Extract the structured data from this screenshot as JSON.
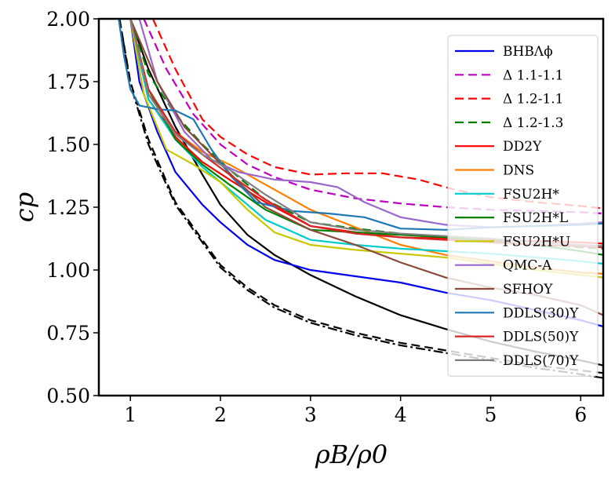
{
  "chart_data": {
    "type": "line",
    "title": "",
    "xlabel": "ρB/ρ0",
    "ylabel": "cp",
    "xlim": [
      0.65,
      6.25
    ],
    "ylim": [
      0.5,
      2.0
    ],
    "xticks": [
      "1",
      "2",
      "3",
      "4",
      "5",
      "6"
    ],
    "yticks": [
      "0.50",
      "0.75",
      "1.00",
      "1.25",
      "1.50",
      "1.75",
      "2.00"
    ],
    "legend_position": "right",
    "series": [
      {
        "name": "BHBΛϕ",
        "color": "#0000ee",
        "dash": "solid",
        "points": [
          [
            1.0,
            2.0
          ],
          [
            1.1,
            1.75
          ],
          [
            1.3,
            1.55
          ],
          [
            1.5,
            1.39
          ],
          [
            1.8,
            1.26
          ],
          [
            2.0,
            1.19
          ],
          [
            2.3,
            1.1
          ],
          [
            2.6,
            1.04
          ],
          [
            3.0,
            1.0
          ],
          [
            3.5,
            0.975
          ],
          [
            4.0,
            0.95
          ],
          [
            4.5,
            0.91
          ],
          [
            5.0,
            0.88
          ],
          [
            5.5,
            0.84
          ],
          [
            6.0,
            0.8
          ],
          [
            6.25,
            0.775
          ]
        ]
      },
      {
        "name": "Δ 1.1-1.1",
        "color": "#c000c0",
        "dash": "dashed",
        "points": [
          [
            1.15,
            2.0
          ],
          [
            1.4,
            1.8
          ],
          [
            1.7,
            1.62
          ],
          [
            2.0,
            1.5
          ],
          [
            2.3,
            1.42
          ],
          [
            2.6,
            1.37
          ],
          [
            3.0,
            1.32
          ],
          [
            3.5,
            1.285
          ],
          [
            4.0,
            1.265
          ],
          [
            4.5,
            1.25
          ],
          [
            5.0,
            1.24
          ],
          [
            5.5,
            1.235
          ],
          [
            6.0,
            1.23
          ],
          [
            6.25,
            1.225
          ]
        ]
      },
      {
        "name": "Δ 1.2-1.1",
        "color": "#ff0000",
        "dash": "dashed",
        "points": [
          [
            1.25,
            2.0
          ],
          [
            1.5,
            1.8
          ],
          [
            1.8,
            1.6
          ],
          [
            2.0,
            1.53
          ],
          [
            2.3,
            1.46
          ],
          [
            2.6,
            1.41
          ],
          [
            3.0,
            1.38
          ],
          [
            3.4,
            1.385
          ],
          [
            3.8,
            1.385
          ],
          [
            4.2,
            1.36
          ],
          [
            4.6,
            1.32
          ],
          [
            5.0,
            1.29
          ],
          [
            5.5,
            1.27
          ],
          [
            6.0,
            1.255
          ],
          [
            6.25,
            1.245
          ]
        ]
      },
      {
        "name": "Δ 1.2-1.3",
        "color": "#008000",
        "dash": "dashed",
        "points": [
          [
            1.0,
            2.0
          ],
          [
            1.2,
            1.78
          ],
          [
            1.5,
            1.62
          ],
          [
            1.8,
            1.5
          ],
          [
            2.1,
            1.4
          ],
          [
            2.5,
            1.28
          ],
          [
            3.0,
            1.19
          ],
          [
            3.5,
            1.165
          ],
          [
            4.0,
            1.145
          ],
          [
            4.5,
            1.125
          ],
          [
            5.0,
            1.11
          ],
          [
            5.5,
            1.1
          ],
          [
            6.0,
            1.09
          ],
          [
            6.25,
            1.085
          ]
        ]
      },
      {
        "name": "DD2Y",
        "color": "#ff0000",
        "dash": "solid",
        "points": [
          [
            1.0,
            2.0
          ],
          [
            1.2,
            1.68
          ],
          [
            1.5,
            1.53
          ],
          [
            1.8,
            1.43
          ],
          [
            2.1,
            1.36
          ],
          [
            2.5,
            1.27
          ],
          [
            3.0,
            1.175
          ],
          [
            3.5,
            1.15
          ],
          [
            4.0,
            1.13
          ],
          [
            4.5,
            1.125
          ],
          [
            5.0,
            1.12
          ],
          [
            5.5,
            1.115
          ],
          [
            6.0,
            1.11
          ],
          [
            6.25,
            1.105
          ]
        ]
      },
      {
        "name": "DNS",
        "color": "#ff8000",
        "dash": "solid",
        "points": [
          [
            1.0,
            2.0
          ],
          [
            1.2,
            1.7
          ],
          [
            1.5,
            1.55
          ],
          [
            1.8,
            1.47
          ],
          [
            2.1,
            1.42
          ],
          [
            2.5,
            1.34
          ],
          [
            3.0,
            1.24
          ],
          [
            3.5,
            1.17
          ],
          [
            4.0,
            1.1
          ],
          [
            4.5,
            1.06
          ],
          [
            5.0,
            1.035
          ],
          [
            5.5,
            1.01
          ],
          [
            6.0,
            0.99
          ],
          [
            6.25,
            0.985
          ]
        ]
      },
      {
        "name": "FSU2H*",
        "color": "#00cccc",
        "dash": "solid",
        "points": [
          [
            1.0,
            2.0
          ],
          [
            1.2,
            1.68
          ],
          [
            1.5,
            1.52
          ],
          [
            1.8,
            1.41
          ],
          [
            2.1,
            1.32
          ],
          [
            2.5,
            1.2
          ],
          [
            3.0,
            1.12
          ],
          [
            3.5,
            1.1
          ],
          [
            4.0,
            1.085
          ],
          [
            4.5,
            1.075
          ],
          [
            5.0,
            1.065
          ],
          [
            5.5,
            1.05
          ],
          [
            6.0,
            1.035
          ],
          [
            6.25,
            1.025
          ]
        ]
      },
      {
        "name": "FSU2H*L",
        "color": "#008000",
        "dash": "solid",
        "points": [
          [
            1.0,
            2.0
          ],
          [
            1.2,
            1.72
          ],
          [
            1.5,
            1.52
          ],
          [
            1.8,
            1.42
          ],
          [
            2.1,
            1.34
          ],
          [
            2.5,
            1.24
          ],
          [
            3.0,
            1.16
          ],
          [
            3.5,
            1.15
          ],
          [
            4.0,
            1.14
          ],
          [
            4.5,
            1.13
          ],
          [
            5.0,
            1.115
          ],
          [
            5.5,
            1.1
          ],
          [
            6.0,
            1.075
          ],
          [
            6.25,
            1.06
          ]
        ]
      },
      {
        "name": "FSU2H*U",
        "color": "#c8c800",
        "dash": "solid",
        "points": [
          [
            1.0,
            2.0
          ],
          [
            1.15,
            1.7
          ],
          [
            1.4,
            1.48
          ],
          [
            1.7,
            1.42
          ],
          [
            2.0,
            1.35
          ],
          [
            2.3,
            1.24
          ],
          [
            2.6,
            1.15
          ],
          [
            3.0,
            1.1
          ],
          [
            3.5,
            1.08
          ],
          [
            4.0,
            1.065
          ],
          [
            4.5,
            1.05
          ],
          [
            5.0,
            1.025
          ],
          [
            5.5,
            1.0
          ],
          [
            6.0,
            0.98
          ],
          [
            6.25,
            0.97
          ]
        ]
      },
      {
        "name": "QMC-A",
        "color": "#9966cc",
        "dash": "solid",
        "points": [
          [
            1.1,
            2.0
          ],
          [
            1.3,
            1.75
          ],
          [
            1.6,
            1.55
          ],
          [
            1.9,
            1.44
          ],
          [
            2.2,
            1.39
          ],
          [
            2.6,
            1.36
          ],
          [
            3.0,
            1.35
          ],
          [
            3.3,
            1.33
          ],
          [
            3.6,
            1.27
          ],
          [
            4.0,
            1.21
          ],
          [
            4.5,
            1.18
          ],
          [
            5.0,
            1.17
          ],
          [
            5.5,
            1.175
          ],
          [
            6.0,
            1.185
          ],
          [
            6.25,
            1.19
          ]
        ]
      },
      {
        "name": "SFHOY",
        "color": "#8b4a3a",
        "dash": "solid",
        "points": [
          [
            1.0,
            2.0
          ],
          [
            1.3,
            1.75
          ],
          [
            1.6,
            1.57
          ],
          [
            1.9,
            1.46
          ],
          [
            2.2,
            1.35
          ],
          [
            2.5,
            1.25
          ],
          [
            3.0,
            1.16
          ],
          [
            3.5,
            1.1
          ],
          [
            4.0,
            1.03
          ],
          [
            4.5,
            0.97
          ],
          [
            5.0,
            0.93
          ],
          [
            5.5,
            0.9
          ],
          [
            6.0,
            0.86
          ],
          [
            6.25,
            0.82
          ]
        ]
      },
      {
        "name": "DDLS(30)Y",
        "color": "#1f77b4",
        "dash": "solid",
        "points": [
          [
            0.87,
            2.0
          ],
          [
            0.93,
            1.85
          ],
          [
            1.0,
            1.72
          ],
          [
            1.1,
            1.655
          ],
          [
            1.3,
            1.64
          ],
          [
            1.5,
            1.635
          ],
          [
            1.7,
            1.6
          ],
          [
            1.9,
            1.48
          ],
          [
            2.1,
            1.38
          ],
          [
            2.4,
            1.27
          ],
          [
            2.8,
            1.235
          ],
          [
            3.2,
            1.225
          ],
          [
            3.6,
            1.21
          ],
          [
            4.0,
            1.165
          ],
          [
            4.5,
            1.16
          ],
          [
            5.0,
            1.17
          ],
          [
            5.5,
            1.175
          ],
          [
            6.0,
            1.18
          ],
          [
            6.25,
            1.185
          ]
        ]
      },
      {
        "name": "DDLS(50)Y",
        "color": "#d62728",
        "dash": "solid",
        "points": [
          [
            1.0,
            2.0
          ],
          [
            1.2,
            1.72
          ],
          [
            1.5,
            1.55
          ],
          [
            1.8,
            1.46
          ],
          [
            2.1,
            1.38
          ],
          [
            2.5,
            1.28
          ],
          [
            3.0,
            1.175
          ],
          [
            3.5,
            1.145
          ],
          [
            4.0,
            1.13
          ],
          [
            4.5,
            1.12
          ],
          [
            5.0,
            1.11
          ],
          [
            5.5,
            1.1
          ],
          [
            6.0,
            1.095
          ],
          [
            6.25,
            1.09
          ]
        ]
      },
      {
        "name": "DDLS(70)Y",
        "color": "#7f7f7f",
        "dash": "solid",
        "points": [
          [
            1.0,
            2.0
          ],
          [
            1.2,
            1.7
          ],
          [
            1.5,
            1.54
          ],
          [
            1.8,
            1.46
          ],
          [
            2.1,
            1.4
          ],
          [
            2.5,
            1.3
          ],
          [
            3.0,
            1.19
          ],
          [
            3.5,
            1.16
          ],
          [
            4.0,
            1.145
          ],
          [
            4.5,
            1.135
          ],
          [
            5.0,
            1.125
          ],
          [
            5.5,
            1.11
          ],
          [
            6.0,
            1.1
          ],
          [
            6.25,
            1.095
          ]
        ]
      }
    ],
    "extra_lines": [
      {
        "color": "#000000",
        "dash": "solid",
        "points": [
          [
            1.0,
            2.0
          ],
          [
            1.2,
            1.8
          ],
          [
            1.5,
            1.57
          ],
          [
            1.8,
            1.38
          ],
          [
            2.0,
            1.26
          ],
          [
            2.3,
            1.14
          ],
          [
            2.6,
            1.06
          ],
          [
            3.0,
            0.98
          ],
          [
            3.5,
            0.895
          ],
          [
            4.0,
            0.82
          ],
          [
            4.5,
            0.765
          ],
          [
            5.0,
            0.715
          ],
          [
            5.5,
            0.675
          ],
          [
            6.0,
            0.64
          ],
          [
            6.25,
            0.62
          ]
        ]
      },
      {
        "color": "#000000",
        "dash": "dashdot",
        "points": [
          [
            0.88,
            2.0
          ],
          [
            1.0,
            1.74
          ],
          [
            1.2,
            1.5
          ],
          [
            1.5,
            1.26
          ],
          [
            1.8,
            1.11
          ],
          [
            2.0,
            1.01
          ],
          [
            2.3,
            0.92
          ],
          [
            2.6,
            0.85
          ],
          [
            3.0,
            0.79
          ],
          [
            3.5,
            0.74
          ],
          [
            4.0,
            0.7
          ],
          [
            4.5,
            0.67
          ],
          [
            5.0,
            0.64
          ],
          [
            5.5,
            0.61
          ],
          [
            6.0,
            0.585
          ],
          [
            6.25,
            0.57
          ]
        ]
      },
      {
        "color": "#000000",
        "dash": "dashed",
        "points": [
          [
            0.88,
            2.0
          ],
          [
            1.0,
            1.75
          ],
          [
            1.2,
            1.52
          ],
          [
            1.5,
            1.27
          ],
          [
            1.8,
            1.12
          ],
          [
            2.0,
            1.02
          ],
          [
            2.3,
            0.93
          ],
          [
            2.6,
            0.86
          ],
          [
            3.0,
            0.8
          ],
          [
            3.5,
            0.75
          ],
          [
            4.0,
            0.71
          ],
          [
            4.5,
            0.68
          ],
          [
            5.0,
            0.65
          ],
          [
            5.5,
            0.62
          ],
          [
            6.0,
            0.6
          ],
          [
            6.25,
            0.59
          ]
        ]
      }
    ]
  }
}
